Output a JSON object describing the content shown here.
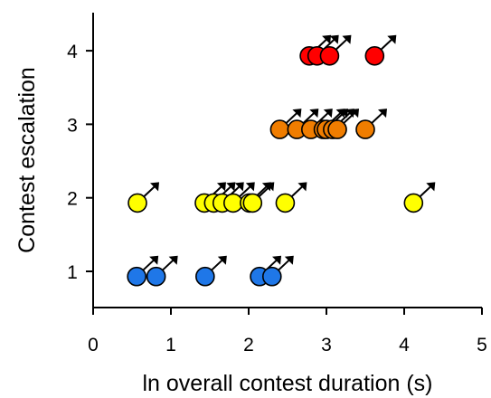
{
  "chart_data": {
    "type": "scatter",
    "xlabel": "ln overall contest duration (s)",
    "ylabel": "Contest escalation",
    "xlim": [
      0,
      5
    ],
    "ylim": [
      0.5,
      4.5
    ],
    "x_ticks": [
      "0",
      "1",
      "2",
      "3",
      "4",
      "5"
    ],
    "y_ticks": [
      "1",
      "2",
      "3",
      "4"
    ],
    "grid": false,
    "legend": "none",
    "marker": "circle with male-symbol arrow",
    "level_colors": {
      "1": "#1f77e8",
      "2": "#ffff00",
      "3": "#f07d00",
      "4": "#ff0000"
    },
    "series": [
      {
        "level": 1,
        "points": [
          {
            "x": 0.56,
            "y": 0.93
          },
          {
            "x": 0.81,
            "y": 0.93
          },
          {
            "x": 1.44,
            "y": 0.93
          },
          {
            "x": 2.14,
            "y": 0.93
          },
          {
            "x": 2.3,
            "y": 0.93
          }
        ]
      },
      {
        "level": 2,
        "points": [
          {
            "x": 0.57,
            "y": 1.93
          },
          {
            "x": 1.43,
            "y": 1.93
          },
          {
            "x": 1.55,
            "y": 1.93
          },
          {
            "x": 1.66,
            "y": 1.93
          },
          {
            "x": 1.8,
            "y": 1.93
          },
          {
            "x": 2.01,
            "y": 1.93
          },
          {
            "x": 2.05,
            "y": 1.93
          },
          {
            "x": 2.47,
            "y": 1.93
          },
          {
            "x": 4.12,
            "y": 1.93
          }
        ]
      },
      {
        "level": 3,
        "points": [
          {
            "x": 2.4,
            "y": 2.93
          },
          {
            "x": 2.62,
            "y": 2.93
          },
          {
            "x": 2.8,
            "y": 2.93
          },
          {
            "x": 2.96,
            "y": 2.93
          },
          {
            "x": 3.0,
            "y": 2.93
          },
          {
            "x": 3.08,
            "y": 2.93
          },
          {
            "x": 3.14,
            "y": 2.93
          },
          {
            "x": 3.5,
            "y": 2.93
          }
        ]
      },
      {
        "level": 4,
        "points": [
          {
            "x": 2.78,
            "y": 3.93
          },
          {
            "x": 2.88,
            "y": 3.93
          },
          {
            "x": 3.04,
            "y": 3.93
          },
          {
            "x": 3.62,
            "y": 3.93
          }
        ]
      }
    ]
  }
}
